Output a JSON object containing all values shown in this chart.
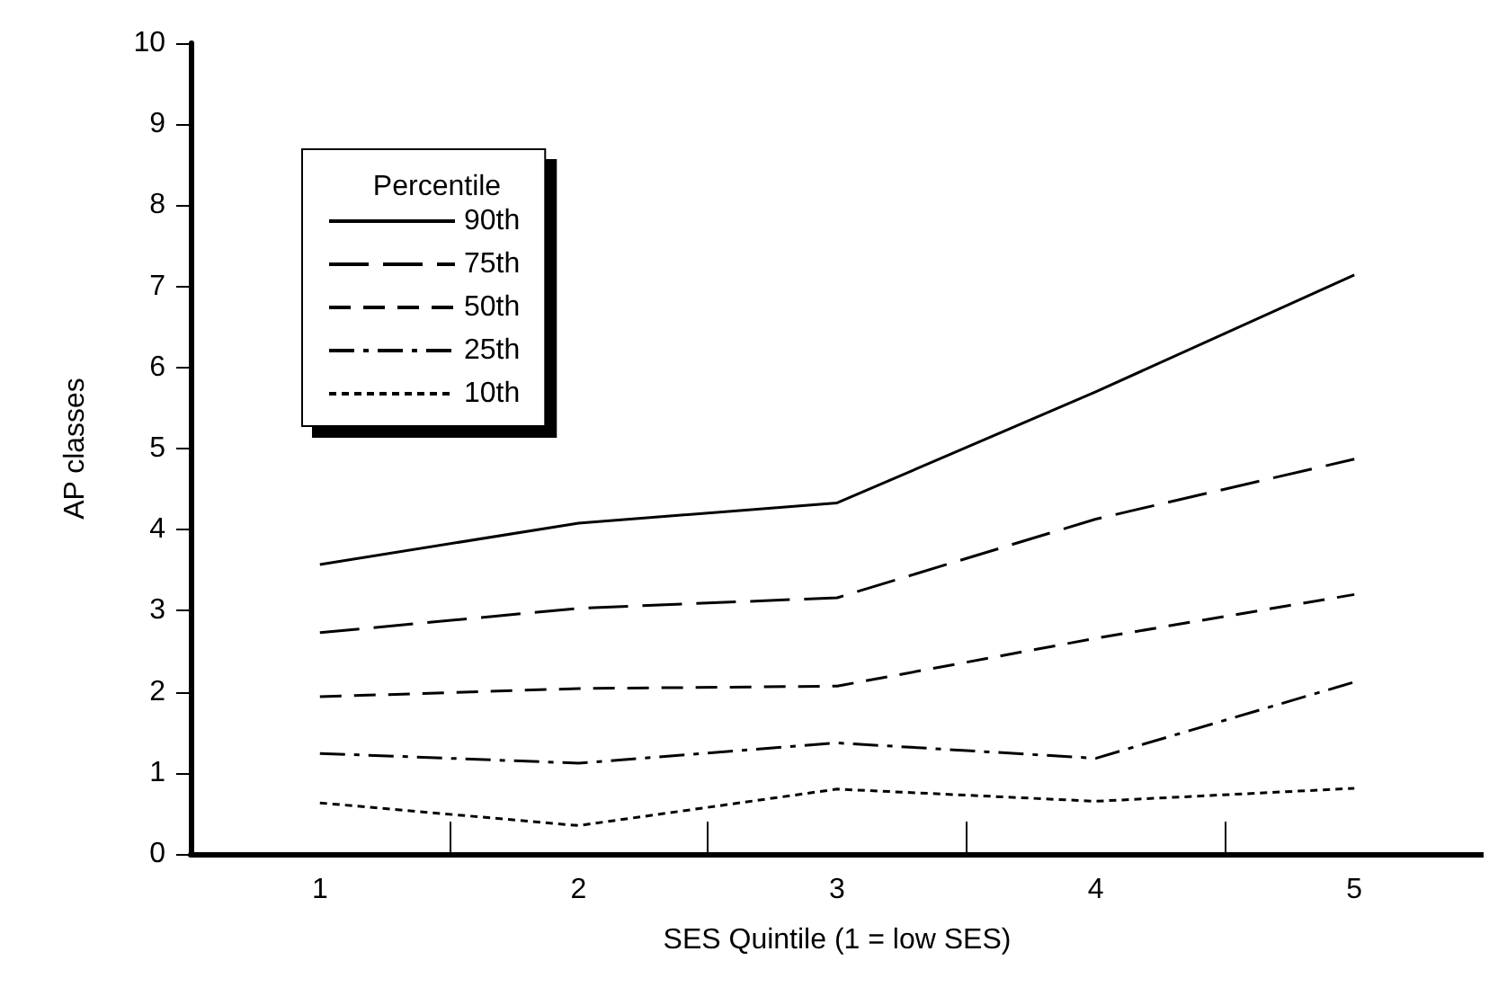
{
  "chart_data": {
    "type": "line",
    "xlabel": "SES Quintile (1 = low SES)",
    "ylabel": "AP classes",
    "legend_title": "Percentile",
    "x": [
      1,
      2,
      3,
      4,
      5
    ],
    "xlim": [
      0.5,
      5.5
    ],
    "xticks": [
      1,
      2,
      3,
      4,
      5
    ],
    "ylim": [
      0,
      10
    ],
    "yticks": [
      0,
      1,
      2,
      3,
      4,
      5,
      6,
      7,
      8,
      9,
      10
    ],
    "grid": false,
    "legend": "top left",
    "marker": "none",
    "series": [
      {
        "name": "90th",
        "color": "#000000",
        "line_style": "solid",
        "values": [
          3.57,
          4.08,
          4.33,
          5.7,
          7.14
        ]
      },
      {
        "name": "75th",
        "color": "#000000",
        "line_style": "dashed",
        "values": [
          2.73,
          3.03,
          3.16,
          4.13,
          4.87
        ]
      },
      {
        "name": "50th",
        "color": "#000000",
        "line_style": "dashed",
        "values": [
          1.94,
          2.04,
          2.07,
          2.66,
          3.2
        ]
      },
      {
        "name": "25th",
        "color": "#000000",
        "line_style": "dashed",
        "values": [
          1.24,
          1.12,
          1.37,
          1.18,
          2.12
        ]
      },
      {
        "name": "10th",
        "color": "#000000",
        "line_style": "dotted",
        "values": [
          0.63,
          0.35,
          0.8,
          0.65,
          0.81
        ]
      }
    ]
  }
}
